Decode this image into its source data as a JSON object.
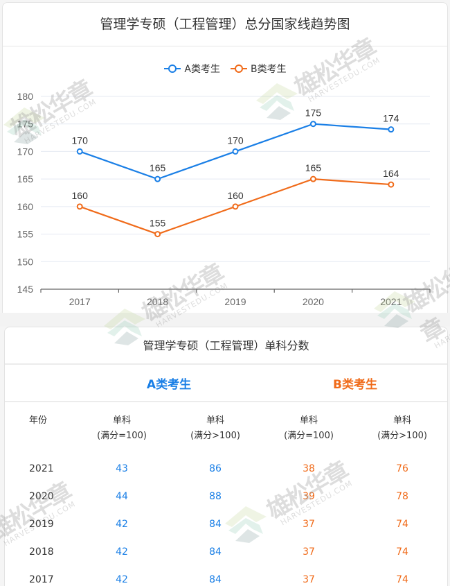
{
  "chart_card": {
    "title": "管理学专硕（工程管理）总分国家线趋势图",
    "legend": [
      {
        "label": "A类考生",
        "color": "#1a7fe6",
        "icon": "line-circle-marker"
      },
      {
        "label": "B类考生",
        "color": "#f06b1a",
        "icon": "line-circle-marker"
      }
    ]
  },
  "chart_data": {
    "type": "line",
    "title": "管理学专硕（工程管理）总分国家线趋势图",
    "categories": [
      "2017",
      "2018",
      "2019",
      "2020",
      "2021"
    ],
    "series": [
      {
        "name": "A类考生",
        "color": "#1a7fe6",
        "values": [
          170,
          165,
          170,
          175,
          174
        ]
      },
      {
        "name": "B类考生",
        "color": "#f06b1a",
        "values": [
          160,
          155,
          160,
          165,
          164
        ]
      }
    ],
    "xlabel": "",
    "ylabel": "",
    "ylim": [
      145,
      180
    ],
    "yticks": [
      145,
      150,
      155,
      160,
      165,
      170,
      175,
      180
    ],
    "grid": true,
    "legend_position": "top",
    "data_labels": true
  },
  "table_card": {
    "title": "管理学专硕（工程管理）单科分数",
    "groups": [
      {
        "label": "A类考生",
        "color": "#1a7fe6"
      },
      {
        "label": "B类考生",
        "color": "#f06b1a"
      }
    ],
    "headers": [
      {
        "line1": "年份",
        "line2": ""
      },
      {
        "line1": "单科",
        "line2": "(满分=100)"
      },
      {
        "line1": "单科",
        "line2": "(满分>100)"
      },
      {
        "line1": "单科",
        "line2": "(满分=100)"
      },
      {
        "line1": "单科",
        "line2": "(满分>100)"
      }
    ],
    "rows": [
      {
        "year": "2021",
        "a100": "43",
        "a_gt100": "86",
        "b100": "38",
        "b_gt100": "76"
      },
      {
        "year": "2020",
        "a100": "44",
        "a_gt100": "88",
        "b100": "39",
        "b_gt100": "78"
      },
      {
        "year": "2019",
        "a100": "42",
        "a_gt100": "84",
        "b100": "37",
        "b_gt100": "74"
      },
      {
        "year": "2018",
        "a100": "42",
        "a_gt100": "84",
        "b100": "37",
        "b_gt100": "74"
      },
      {
        "year": "2017",
        "a100": "42",
        "a_gt100": "84",
        "b100": "37",
        "b_gt100": "74"
      }
    ]
  },
  "watermark": {
    "brand_cn": "雄松华章",
    "brand_en": "HARVESTEDU.COM"
  }
}
